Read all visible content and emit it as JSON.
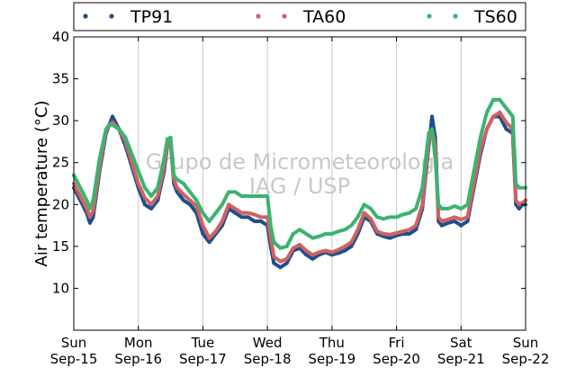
{
  "chart_data": {
    "type": "scatter",
    "title": "",
    "xlabel": "",
    "ylabel": "Air temperature (°C)",
    "ylim": [
      5,
      40
    ],
    "yticks": [
      10,
      15,
      20,
      25,
      30,
      35,
      40
    ],
    "xlim": [
      0,
      7
    ],
    "x_unit": "days",
    "xticks": [
      {
        "day": "Sun",
        "date": "Sep-15"
      },
      {
        "day": "Mon",
        "date": "Sep-16"
      },
      {
        "day": "Tue",
        "date": "Sep-17"
      },
      {
        "day": "Wed",
        "date": "Sep-18"
      },
      {
        "day": "Thu",
        "date": "Sep-19"
      },
      {
        "day": "Fri",
        "date": "Sep-20"
      },
      {
        "day": "Sat",
        "date": "Sep-21"
      },
      {
        "day": "Sun",
        "date": "Sep-22"
      }
    ],
    "grid": "vertical",
    "legend_position": "top",
    "watermark": [
      "Grupo de Micrometeorologia",
      "IAG / USP"
    ],
    "series": [
      {
        "name": "TP91",
        "color": "#1f4e8c",
        "x": [
          0,
          0.1,
          0.2,
          0.25,
          0.3,
          0.4,
          0.5,
          0.55,
          0.6,
          0.7,
          0.8,
          0.9,
          1.0,
          1.1,
          1.2,
          1.3,
          1.4,
          1.45,
          1.5,
          1.55,
          1.6,
          1.7,
          1.8,
          1.9,
          2.0,
          2.1,
          2.2,
          2.3,
          2.4,
          2.5,
          2.6,
          2.7,
          2.8,
          2.9,
          3.0,
          3.05,
          3.1,
          3.2,
          3.3,
          3.4,
          3.5,
          3.6,
          3.7,
          3.8,
          3.9,
          4.0,
          4.1,
          4.2,
          4.3,
          4.4,
          4.5,
          4.6,
          4.7,
          4.8,
          4.9,
          5.0,
          5.1,
          5.2,
          5.3,
          5.4,
          5.5,
          5.55,
          5.6,
          5.65,
          5.7,
          5.8,
          5.9,
          6.0,
          6.1,
          6.2,
          6.3,
          6.4,
          6.5,
          6.6,
          6.7,
          6.8,
          6.85,
          6.9,
          6.95,
          7.0
        ],
        "y": [
          22.0,
          20.5,
          19.0,
          17.8,
          18.5,
          24.0,
          28.5,
          29.5,
          30.5,
          29.0,
          27.0,
          24.5,
          22.0,
          20.0,
          19.5,
          20.5,
          24.0,
          27.0,
          27.5,
          22.5,
          21.5,
          20.5,
          20.0,
          19.0,
          16.5,
          15.5,
          16.5,
          17.5,
          19.5,
          19.0,
          18.5,
          18.5,
          18.0,
          18.0,
          17.5,
          15.0,
          13.0,
          12.5,
          13.0,
          14.5,
          14.8,
          14.0,
          13.5,
          14.0,
          14.3,
          14.0,
          14.2,
          14.5,
          15.0,
          16.5,
          18.5,
          18.0,
          16.5,
          16.2,
          16.0,
          16.3,
          16.5,
          16.5,
          17.0,
          19.5,
          27.0,
          30.5,
          28.0,
          18.0,
          17.5,
          17.8,
          18.0,
          17.5,
          18.0,
          22.0,
          26.0,
          29.0,
          30.5,
          30.5,
          29.0,
          28.5,
          20.0,
          19.5,
          20.0,
          20.0
        ]
      },
      {
        "name": "TA60",
        "color": "#d06262",
        "x": [
          0,
          0.1,
          0.2,
          0.25,
          0.3,
          0.4,
          0.5,
          0.55,
          0.6,
          0.7,
          0.8,
          0.9,
          1.0,
          1.1,
          1.2,
          1.3,
          1.4,
          1.45,
          1.5,
          1.55,
          1.6,
          1.7,
          1.8,
          1.9,
          2.0,
          2.1,
          2.2,
          2.3,
          2.4,
          2.5,
          2.6,
          2.7,
          2.8,
          2.9,
          3.0,
          3.05,
          3.1,
          3.2,
          3.3,
          3.4,
          3.5,
          3.6,
          3.7,
          3.8,
          3.9,
          4.0,
          4.1,
          4.2,
          4.3,
          4.4,
          4.5,
          4.6,
          4.7,
          4.8,
          4.9,
          5.0,
          5.1,
          5.2,
          5.3,
          5.4,
          5.5,
          5.55,
          5.6,
          5.65,
          5.7,
          5.8,
          5.9,
          6.0,
          6.1,
          6.2,
          6.3,
          6.4,
          6.5,
          6.6,
          6.7,
          6.8,
          6.85,
          6.9,
          6.95,
          7.0
        ],
        "y": [
          22.5,
          21.0,
          19.5,
          18.5,
          19.2,
          24.5,
          28.8,
          29.5,
          29.8,
          29.0,
          27.5,
          25.0,
          22.5,
          20.8,
          20.0,
          21.0,
          24.5,
          27.2,
          27.5,
          23.0,
          22.0,
          21.2,
          20.5,
          19.8,
          17.5,
          16.0,
          16.8,
          18.0,
          20.0,
          19.5,
          19.0,
          19.0,
          18.8,
          18.5,
          18.5,
          16.0,
          13.8,
          13.2,
          13.5,
          14.8,
          15.2,
          14.5,
          14.0,
          14.3,
          14.5,
          14.3,
          14.6,
          15.0,
          15.5,
          17.0,
          19.0,
          18.3,
          16.8,
          16.5,
          16.4,
          16.6,
          16.8,
          17.0,
          17.5,
          20.0,
          27.5,
          29.0,
          27.0,
          18.5,
          18.0,
          18.2,
          18.5,
          18.2,
          18.5,
          22.5,
          26.5,
          29.0,
          30.5,
          31.0,
          29.8,
          29.0,
          20.5,
          20.0,
          20.2,
          20.5
        ]
      },
      {
        "name": "TS60",
        "color": "#3cb371",
        "x": [
          0,
          0.1,
          0.2,
          0.25,
          0.3,
          0.4,
          0.5,
          0.55,
          0.6,
          0.7,
          0.8,
          0.9,
          1.0,
          1.1,
          1.2,
          1.3,
          1.4,
          1.45,
          1.5,
          1.55,
          1.6,
          1.7,
          1.8,
          1.9,
          2.0,
          2.1,
          2.2,
          2.3,
          2.4,
          2.5,
          2.6,
          2.7,
          2.8,
          2.9,
          3.0,
          3.05,
          3.1,
          3.2,
          3.3,
          3.4,
          3.5,
          3.6,
          3.7,
          3.8,
          3.9,
          4.0,
          4.1,
          4.2,
          4.3,
          4.4,
          4.5,
          4.6,
          4.7,
          4.8,
          4.9,
          5.0,
          5.1,
          5.2,
          5.3,
          5.4,
          5.5,
          5.55,
          5.6,
          5.65,
          5.7,
          5.8,
          5.9,
          6.0,
          6.1,
          6.2,
          6.3,
          6.4,
          6.5,
          6.6,
          6.7,
          6.8,
          6.85,
          6.9,
          6.95,
          7.0
        ],
        "y": [
          23.5,
          22.0,
          20.5,
          19.5,
          20.5,
          25.5,
          29.0,
          29.5,
          29.5,
          29.0,
          28.0,
          26.0,
          24.0,
          22.0,
          21.0,
          22.0,
          25.5,
          27.8,
          28.0,
          23.5,
          23.0,
          22.5,
          21.5,
          20.5,
          19.0,
          18.0,
          19.0,
          20.0,
          21.5,
          21.5,
          21.0,
          21.0,
          21.0,
          21.0,
          21.0,
          17.5,
          15.5,
          14.8,
          15.0,
          16.5,
          17.0,
          16.5,
          16.0,
          16.2,
          16.5,
          16.5,
          16.8,
          17.0,
          17.5,
          18.5,
          20.0,
          19.5,
          18.5,
          18.3,
          18.5,
          18.5,
          18.8,
          19.0,
          19.5,
          22.0,
          28.5,
          29.0,
          25.5,
          20.0,
          19.5,
          19.5,
          19.8,
          19.5,
          20.0,
          24.0,
          28.0,
          31.0,
          32.5,
          32.5,
          31.5,
          30.5,
          22.5,
          22.0,
          22.0,
          22.0
        ]
      }
    ]
  }
}
